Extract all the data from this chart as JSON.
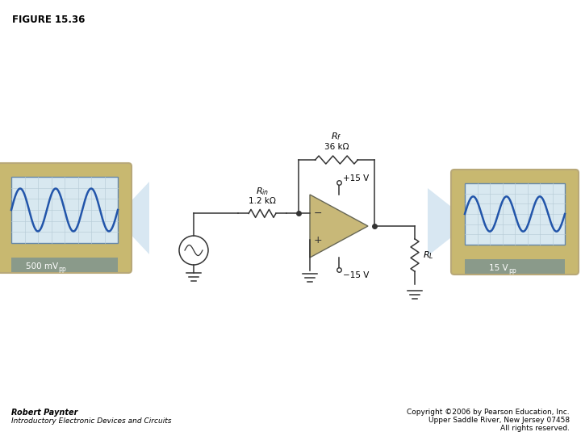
{
  "title": "FIGURE 15.36",
  "bg_color": "#ffffff",
  "scope_bg": "#d8e8f0",
  "scope_outer": "#b8a878",
  "scope_inner_border": "#8899aa",
  "scope_grid_color": "#b8ccd8",
  "scope_label_bg": "#8a9a8a",
  "wave_color": "#2255aa",
  "opamp_fill": "#c8b878",
  "opamp_edge": "#666655",
  "wire_color": "#333333",
  "label_left_main": "500 mV",
  "label_left_sub": "pp",
  "label_right_main": "15 V",
  "label_right_sub": "pp",
  "Rf_label": "$R_f$",
  "Rf_value": "36 kΩ",
  "Rin_label": "$R_{in}$",
  "Rin_value": "1.2 kΩ",
  "RL_label": "$R_L$",
  "vplus": "+15 V",
  "vminus": "−15 V",
  "author_line1": "Robert Paynter",
  "author_line2": "Introductory Electronic Devices and Circuits",
  "copy1": "Copyright ©2006 by Pearson Education, Inc.",
  "copy2": "Upper Saddle River, New Jersey 07458",
  "copy3": "All rights reserved."
}
